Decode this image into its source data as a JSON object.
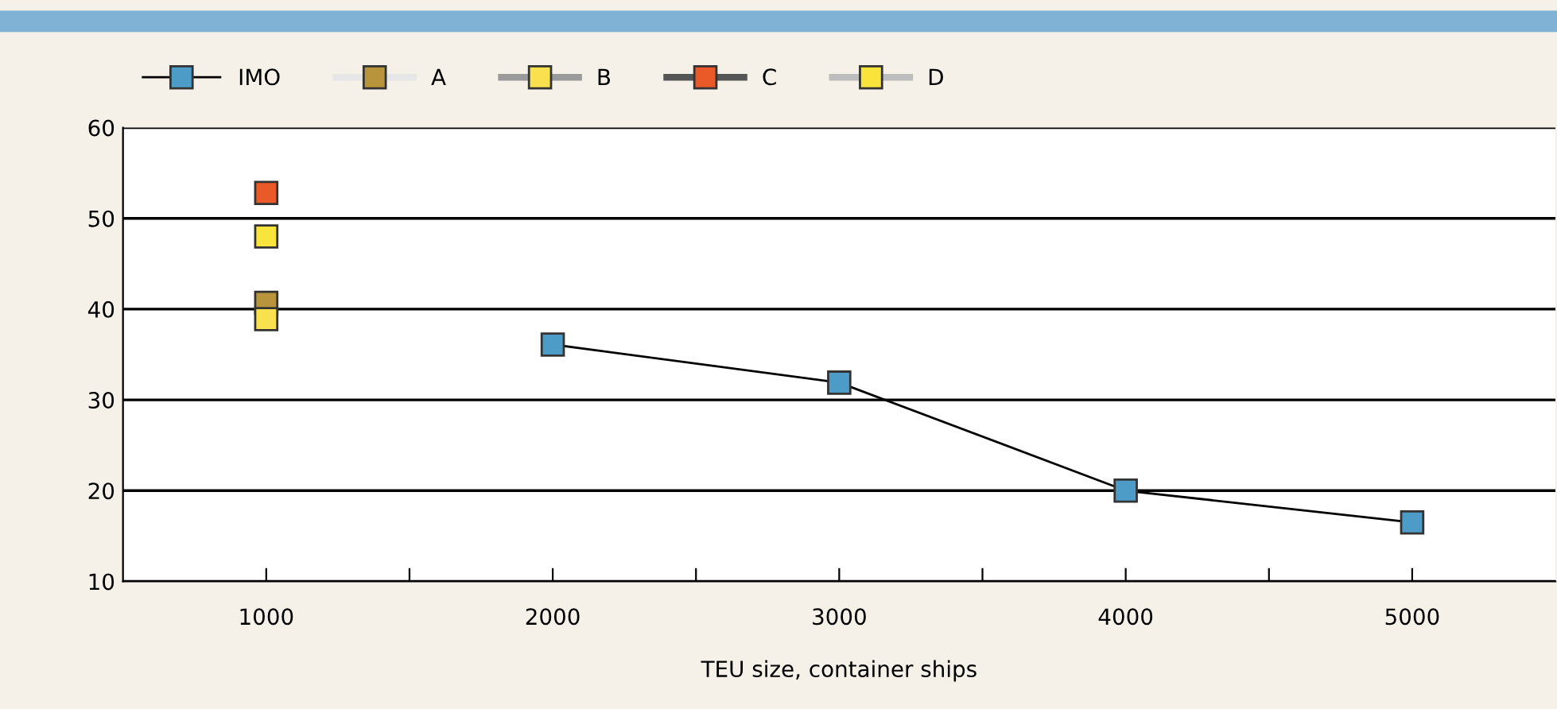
{
  "chart_data": {
    "type": "line",
    "xlabel": "TEU size, container ships",
    "x": [
      1000,
      2000,
      3000,
      4000,
      5000
    ],
    "series": [
      {
        "name": "IMO",
        "color": "#4d9cc8",
        "values": [
          null,
          36.1,
          31.9,
          20,
          16.5
        ]
      },
      {
        "name": "A",
        "color": "#b8943c",
        "values": [
          40.7,
          null,
          null,
          null,
          null
        ]
      },
      {
        "name": "B",
        "color": "#f8e04e",
        "values": [
          38.9,
          null,
          null,
          null,
          null
        ]
      },
      {
        "name": "C",
        "color": "#ea5a28",
        "values": [
          52.8,
          null,
          null,
          null,
          null
        ]
      },
      {
        "name": "D",
        "color": "#f8e43a",
        "values": [
          48,
          null,
          null,
          null,
          null
        ]
      }
    ],
    "xlim": [
      500,
      5500
    ],
    "xticks": [
      1000,
      {
        "value": 1500,
        "label": null
      },
      2000,
      {
        "value": 2500,
        "label": null
      },
      3000,
      {
        "value": 3500,
        "label": null
      },
      4000,
      {
        "value": 4500,
        "label": null
      },
      5000
    ],
    "ylim": [
      10,
      60
    ],
    "yticks": [
      10,
      20,
      30,
      40,
      50,
      60
    ],
    "grid": "y",
    "legend": "top",
    "marker": "square",
    "line_style": "solid"
  }
}
